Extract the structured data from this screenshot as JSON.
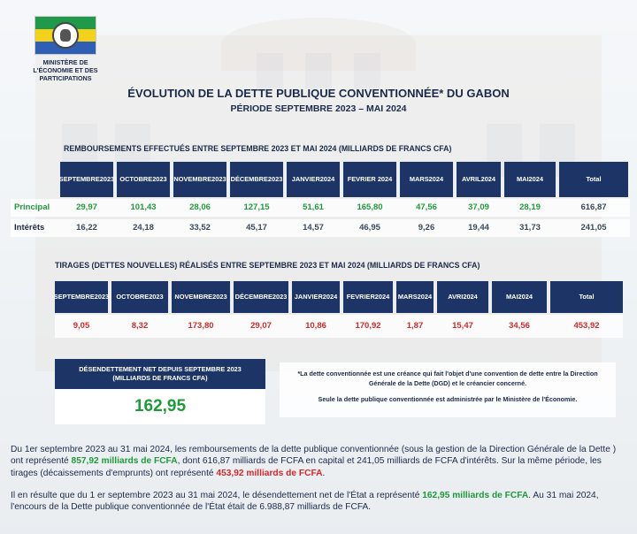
{
  "ministry": {
    "name": "MINISTÈRE DE L'ÉCONOMIE ET DES PARTICIPATIONS"
  },
  "title": "ÉVOLUTION DE LA DETTE PUBLIQUE CONVENTIONNÉE* DU GABON",
  "subtitle": "PÉRIODE SEPTEMBRE 2023 – MAI 2024",
  "remboursements": {
    "label": "REMBOURSEMENTS EFFECTUÉS ENTRE SEPTEMBRE 2023 ET MAI 2024 (MILLIARDS DE FRANCS CFA)",
    "headers": [
      {
        "l1": "SEPTEMBRE",
        "l2": "2023"
      },
      {
        "l1": "OCTOBRE",
        "l2": "2023"
      },
      {
        "l1": "NOVEMBRE",
        "l2": "2023"
      },
      {
        "l1": "DÉCEMBRE",
        "l2": "2023"
      },
      {
        "l1": "JANVIER",
        "l2": "2024"
      },
      {
        "l1": "FEVRIER 2024",
        "l2": ""
      },
      {
        "l1": "MARS",
        "l2": "2024"
      },
      {
        "l1": "AVRIL",
        "l2": "2024"
      },
      {
        "l1": "MAI",
        "l2": "2024"
      },
      {
        "l1": "Total",
        "l2": ""
      }
    ],
    "rows": [
      {
        "label": "Principal",
        "values": [
          "29,97",
          "101,43",
          "28,06",
          "127,15",
          "51,61",
          "165,80",
          "47,56",
          "37,09",
          "28,19",
          "616,87"
        ]
      },
      {
        "label": "Intérêts",
        "values": [
          "16,22",
          "24,18",
          "33,52",
          "45,17",
          "14,57",
          "46,95",
          "9,26",
          "19,44",
          "31,73",
          "241,05"
        ]
      }
    ]
  },
  "tirages": {
    "label": "TIRAGES (DETTES NOUVELLES) RÉALISÉS ENTRE SEPTEMBRE 2023 ET MAI 2024 (MILLIARDS DE FRANCS CFA)",
    "headers": [
      {
        "l1": "SEPTEMBRE",
        "l2": "2023"
      },
      {
        "l1": "OCTOBRE",
        "l2": "2023"
      },
      {
        "l1": "NOVEMBRE",
        "l2": "2023"
      },
      {
        "l1": "DÉCEMBRE",
        "l2": "2023"
      },
      {
        "l1": "JANVIER",
        "l2": "2024"
      },
      {
        "l1": "FEVRIER",
        "l2": "2024"
      },
      {
        "l1": "MARS",
        "l2": "2024"
      },
      {
        "l1": "AVRI",
        "l2": "2024"
      },
      {
        "l1": "MAI",
        "l2": "2024"
      },
      {
        "l1": "Total",
        "l2": ""
      }
    ],
    "values": [
      "9,05",
      "8,32",
      "173,80",
      "29,07",
      "10,86",
      "170,92",
      "1,87",
      "15,47",
      "34,56",
      "453,92"
    ]
  },
  "desendettement": {
    "label": "DÉSENDETTEMENT NET DEPUIS SEPTEMBRE 2023 (MILLIARDS DE FRANCS CFA)",
    "value": "162,95"
  },
  "note": {
    "line1": "*La dette conventionnée est une créance qui fait l'objet d'une convention de dette entre la Direction Générale de la Dette (DGD) et le créancier concerné.",
    "line2": "Seule la dette publique conventionnée est administrée par le Ministère de l'Économie."
  },
  "paragraph1": {
    "p1": "Du 1er septembre 2023 au 31 mai 2024, les remboursements de la dette publique conventionnée (sous la gestion de la Direction Générale de la Dette ) ont  représenté ",
    "h1": "857,92 milliards de FCFA",
    "p2": ", dont 616,87 milliards de FCFA en capital et 241,05 milliards de FCFA d'intérêts. Sur la même période, les tirages (décaissements d'emprunts) ont représenté ",
    "h2": "453,92 milliards de FCFA",
    "p3": "."
  },
  "paragraph2": {
    "p1": "Il en résulte que du 1 er septembre 2023 au 31 mai 2024, le désendettement net de l'État a représenté ",
    "h1": "162,95 milliards de FCFA",
    "p2": ".  Au 31 mai 2024, l'encours de la Dette publique conventionnée de l'État était de 6.988,87 milliards de FCFA."
  },
  "colors": {
    "navy": "#1c3566",
    "green": "#1f9a3a",
    "red": "#d12a2a"
  }
}
